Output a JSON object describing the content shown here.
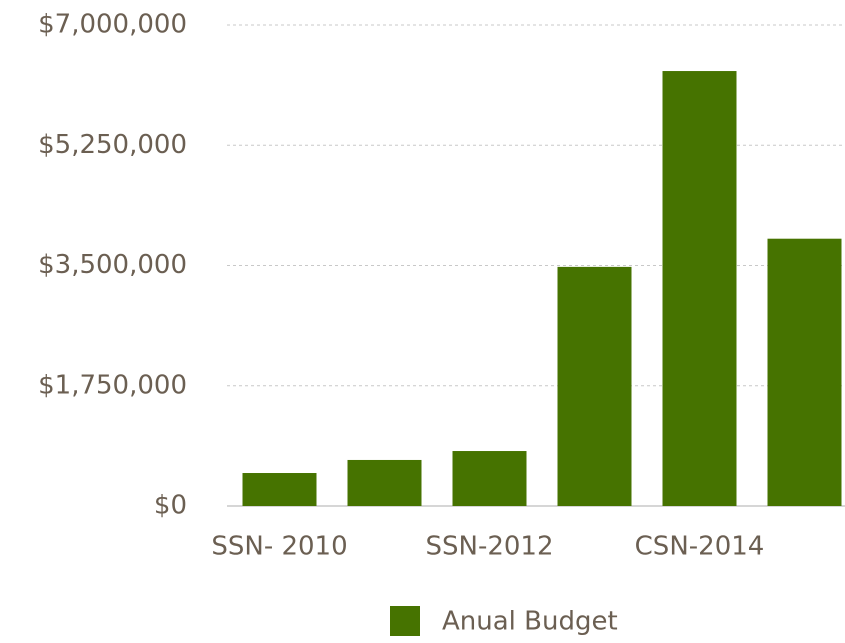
{
  "chart_data": {
    "type": "bar",
    "categories": [
      "SSN- 2010",
      null,
      "SSN-2012",
      null,
      "CSN-2014",
      null
    ],
    "series": [
      {
        "name": "Anual Budget",
        "color": "#467300",
        "values": [
          480000,
          670000,
          800000,
          3480000,
          6330000,
          3890000
        ]
      }
    ],
    "ylim": [
      0,
      7000000
    ],
    "yticks": [
      {
        "value": 0,
        "label": "$0"
      },
      {
        "value": 1750000,
        "label": "$1,750,000"
      },
      {
        "value": 3500000,
        "label": "$3,500,000"
      },
      {
        "value": 5250000,
        "label": "$5,250,000"
      },
      {
        "value": 7000000,
        "label": "$7,000,000"
      }
    ],
    "grid": true,
    "legend": "bottom"
  }
}
